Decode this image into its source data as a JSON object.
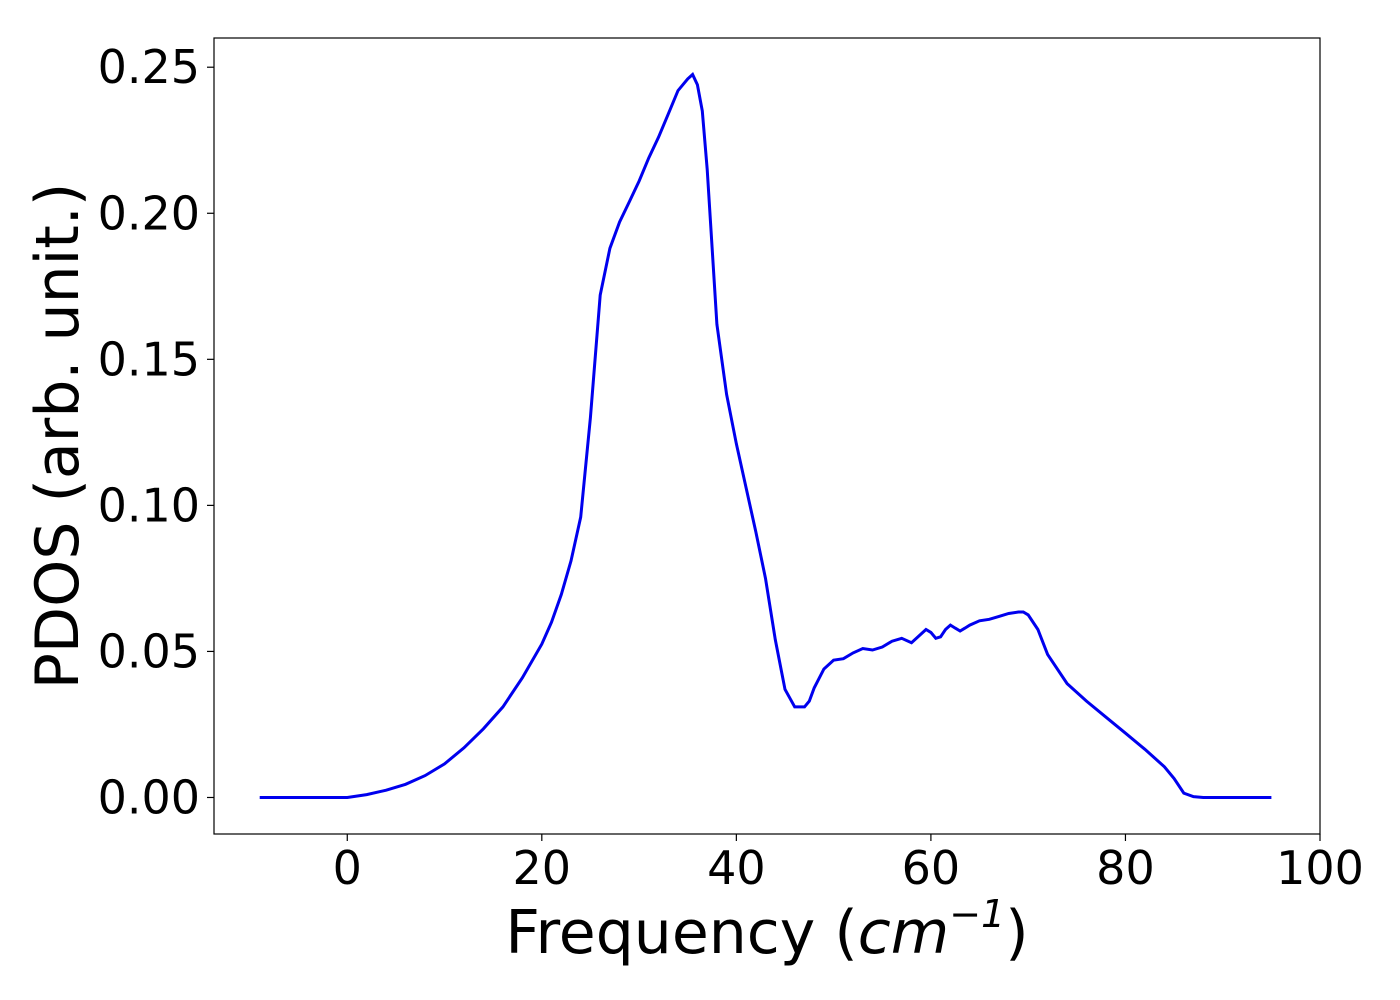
{
  "chart_data": {
    "type": "line",
    "title": "",
    "xlabel": "Frequency",
    "xlabel_unit_base": "cm",
    "xlabel_unit_exponent": "−1",
    "ylabel": "PDOS (arb. unit.)",
    "xlim": [
      -13.7,
      100
    ],
    "ylim": [
      -0.0125,
      0.26
    ],
    "xticks": [
      0,
      20,
      40,
      60,
      80,
      100
    ],
    "xtick_labels": [
      "0",
      "20",
      "40",
      "60",
      "80",
      "100"
    ],
    "yticks": [
      0.0,
      0.05,
      0.1,
      0.15,
      0.2,
      0.25
    ],
    "ytick_labels": [
      "0.00",
      "0.05",
      "0.10",
      "0.15",
      "0.20",
      "0.25"
    ],
    "grid": false,
    "legend": "none",
    "colors": {
      "line": "#0000ee",
      "axes": "#000000"
    },
    "series": [
      {
        "x": [
          -9,
          -4,
          0,
          2,
          4,
          6,
          8,
          10,
          12,
          14,
          16,
          18,
          20,
          21,
          22,
          23,
          24,
          25,
          26,
          27,
          28,
          29,
          30,
          31,
          32,
          33,
          34,
          35,
          35.5,
          36,
          36.5,
          37,
          38,
          39,
          40,
          41,
          42,
          43,
          44,
          45,
          45.5,
          46,
          47,
          47.5,
          48,
          49,
          50,
          51,
          52,
          53,
          54,
          55,
          56,
          57,
          58,
          59,
          59.5,
          60,
          60.5,
          61,
          61.5,
          62,
          62.5,
          63,
          63.5,
          64,
          65,
          66,
          67,
          68,
          69,
          69.5,
          70,
          71,
          72,
          74,
          76,
          78,
          80,
          82,
          84,
          85,
          86,
          87,
          88,
          95
        ],
        "y": [
          0,
          0,
          0,
          0.001,
          0.0025,
          0.0045,
          0.0075,
          0.0115,
          0.017,
          0.0235,
          0.031,
          0.041,
          0.0525,
          0.06,
          0.0695,
          0.081,
          0.096,
          0.13,
          0.172,
          0.188,
          0.197,
          0.204,
          0.211,
          0.219,
          0.226,
          0.234,
          0.242,
          0.246,
          0.2475,
          0.244,
          0.235,
          0.215,
          0.162,
          0.138,
          0.121,
          0.106,
          0.091,
          0.075,
          0.054,
          0.037,
          0.034,
          0.031,
          0.031,
          0.033,
          0.0375,
          0.044,
          0.047,
          0.0475,
          0.0495,
          0.051,
          0.0505,
          0.0515,
          0.0535,
          0.0545,
          0.053,
          0.056,
          0.0575,
          0.0565,
          0.0545,
          0.055,
          0.0575,
          0.059,
          0.058,
          0.057,
          0.058,
          0.059,
          0.0605,
          0.061,
          0.062,
          0.063,
          0.0635,
          0.0635,
          0.0625,
          0.0575,
          0.049,
          0.039,
          0.033,
          0.0275,
          0.022,
          0.0165,
          0.0105,
          0.0065,
          0.0015,
          0.0003,
          0,
          0
        ]
      }
    ]
  }
}
